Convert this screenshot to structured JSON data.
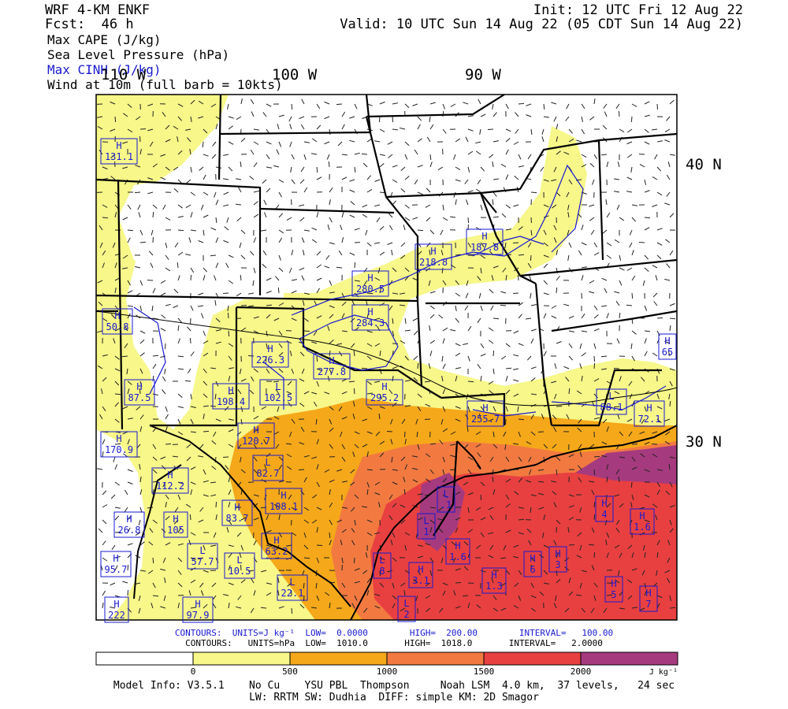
{
  "header": {
    "model": "WRF 4-KM ENKF",
    "fcst": "Fcst:  46 h",
    "init": "Init: 12 UTC Fri 12 Aug 22",
    "valid": "Valid: 10 UTC Sun 14 Aug 22 (05 CDT Sun 14 Aug 22)",
    "fields": [
      {
        "text": "Max CAPE (J/kg)",
        "color": "#000000"
      },
      {
        "text": "Sea Level Pressure (hPa)",
        "color": "#000000"
      },
      {
        "text": "Max CINH (J/kg)",
        "color": "#1a1ad0"
      },
      {
        "text": "Wind at 10m (full barb = 10kts)",
        "color": "#000000"
      }
    ]
  },
  "map": {
    "lon_labels": [
      "110 W",
      "100 W",
      "90 W"
    ],
    "lat_labels": [
      "40 N",
      "30 N"
    ],
    "pressure_centers": [
      {
        "type": "H",
        "value": "131.1"
      },
      {
        "type": "H",
        "value": "187.8"
      },
      {
        "type": "H",
        "value": "218.8"
      },
      {
        "type": "H",
        "value": "280.5"
      },
      {
        "type": "H",
        "value": "284.3"
      },
      {
        "type": "H",
        "value": "50.8"
      },
      {
        "type": "H",
        "value": "226.3"
      },
      {
        "type": "H",
        "value": "277.8"
      },
      {
        "type": "H",
        "value": "65"
      },
      {
        "type": "H",
        "value": "87.5"
      },
      {
        "type": "H",
        "value": "198.4"
      },
      {
        "type": "L",
        "value": "102.5"
      },
      {
        "type": "H",
        "value": "295.2"
      },
      {
        "type": "L",
        "value": "88.1"
      },
      {
        "type": "H",
        "value": "255.7"
      },
      {
        "type": "H",
        "value": "72.1"
      },
      {
        "type": "H",
        "value": "120.7"
      },
      {
        "type": "H",
        "value": "170.9"
      },
      {
        "type": "H",
        "value": "112.2"
      },
      {
        "type": "L",
        "value": "82.7"
      },
      {
        "type": "H",
        "value": "108.1"
      },
      {
        "type": "L",
        "value": ".1"
      },
      {
        "type": "H",
        "value": "26.8"
      },
      {
        "type": "H",
        "value": "83.7"
      },
      {
        "type": "H",
        "value": "105"
      },
      {
        "type": "L",
        "value": "1"
      },
      {
        "type": "H",
        "value": "4"
      },
      {
        "type": "H",
        "value": "1.6"
      },
      {
        "type": "H",
        "value": "63.2"
      },
      {
        "type": "H",
        "value": "1.6"
      },
      {
        "type": "L",
        "value": "57.7"
      },
      {
        "type": "L",
        "value": "10.5"
      },
      {
        "type": "H",
        "value": "6"
      },
      {
        "type": "H",
        "value": "3"
      },
      {
        "type": "L",
        "value": "8"
      },
      {
        "type": "H",
        "value": "3.1"
      },
      {
        "type": "H",
        "value": "1.3"
      },
      {
        "type": "H",
        "value": "95.7"
      },
      {
        "type": "L",
        "value": "22.1"
      },
      {
        "type": "H",
        "value": "5"
      },
      {
        "type": "H",
        "value": "7"
      },
      {
        "type": "H",
        "value": "97.9"
      },
      {
        "type": "H",
        "value": "222"
      },
      {
        "type": "L",
        "value": "2"
      }
    ]
  },
  "contours": {
    "cinh": "CONTOURS:  UNITS=J kg⁻¹  LOW=  0.0000        HIGH=  200.00        INTERVAL=   100.00",
    "slp": "CONTOURS:   UNITS=hPa  LOW=  1010.0       HIGH=  1018.0       INTERVAL=   2.0000",
    "cinh_color": "#1a1ad0"
  },
  "colorbar": {
    "colors": [
      "#ffffff",
      "#f7f78a",
      "#f5a81a",
      "#f27a40",
      "#e84040",
      "#a63a7e"
    ],
    "ticks": [
      "0",
      "500",
      "1000",
      "1500",
      "2000"
    ],
    "unit": "J kg⁻¹"
  },
  "footer": {
    "line1": "Model Info: V3.5.1    No Cu    YSU PBL  Thompson     Noah LSM  4.0 km,  37 levels,   24 sec",
    "line2": "LW: RRTM SW: Dudhia  DIFF: simple KM: 2D Smagor"
  }
}
